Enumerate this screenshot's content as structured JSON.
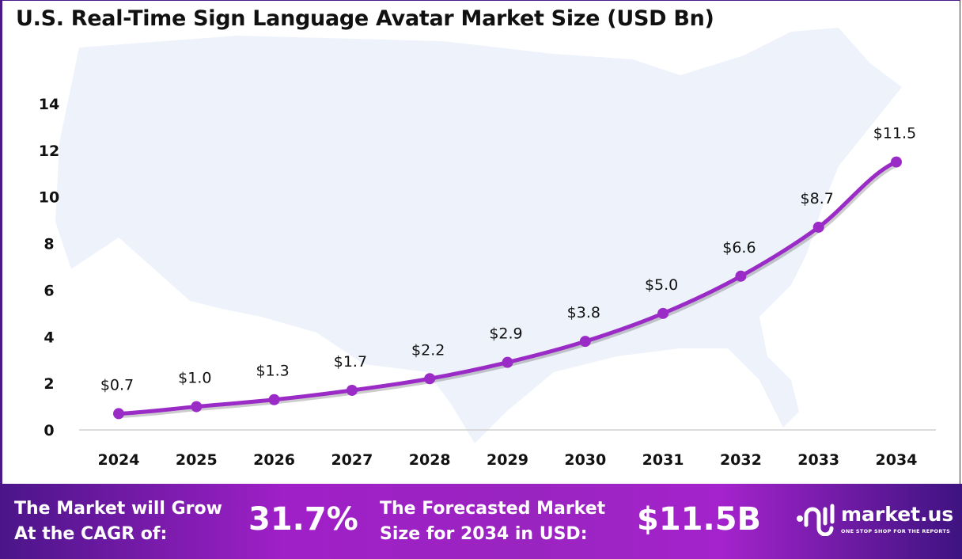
{
  "title": "U.S. Real-Time Sign Language Avatar Market Size (USD Bn)",
  "chart_data": {
    "type": "line",
    "title": "U.S. Real-Time Sign Language Avatar Market Size (USD Bn)",
    "categories": [
      "2024",
      "2025",
      "2026",
      "2027",
      "2028",
      "2029",
      "2030",
      "2031",
      "2032",
      "2033",
      "2034"
    ],
    "values": [
      0.7,
      1.0,
      1.3,
      1.7,
      2.2,
      2.9,
      3.8,
      5.0,
      6.6,
      8.7,
      11.5
    ],
    "data_labels": [
      "$0.7",
      "$1.0",
      "$1.3",
      "$1.7",
      "$2.2",
      "$2.9",
      "$3.8",
      "$5.0",
      "$6.6",
      "$8.7",
      "$11.5"
    ],
    "yticks": [
      "0",
      "2",
      "4",
      "6",
      "8",
      "10",
      "12",
      "14"
    ],
    "ylim": [
      0,
      14
    ],
    "xlabel": "",
    "ylabel": "",
    "grid": false,
    "line_color": "#9b2bc6"
  },
  "footer": {
    "cagr_label_line1": "The Market will Grow",
    "cagr_label_line2": "At the CAGR of:",
    "cagr_value": "31.7%",
    "forecast_label_line1": "The Forecasted Market",
    "forecast_label_line2": "Size for 2034 in USD:",
    "forecast_value": "$11.5B",
    "logo_name": "market.us",
    "logo_tagline": "ONE STOP SHOP FOR THE REPORTS"
  }
}
